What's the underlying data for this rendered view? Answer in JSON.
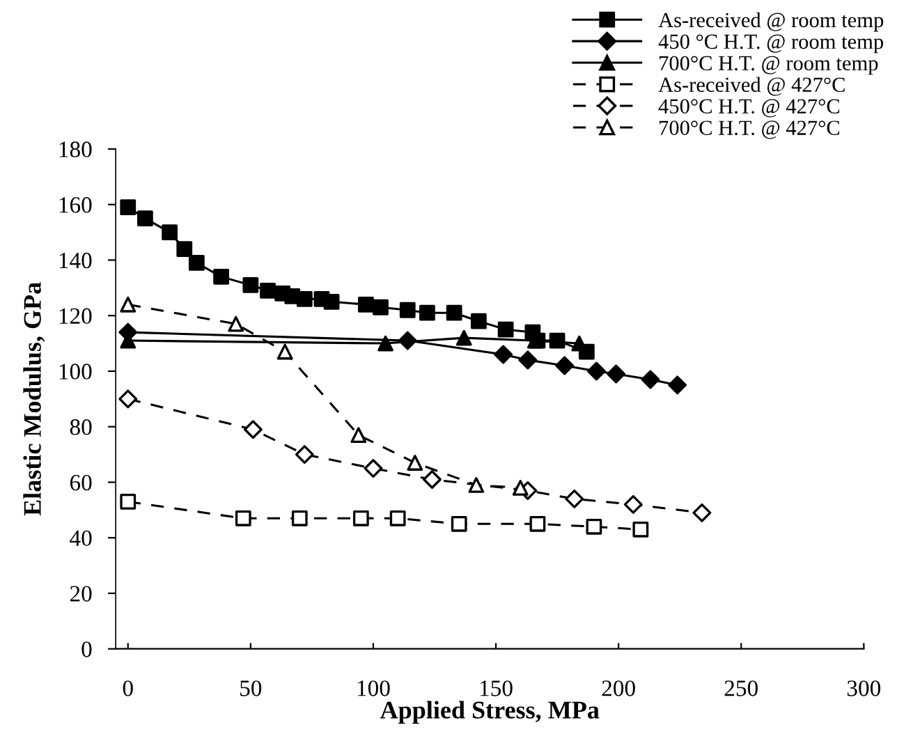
{
  "chart_data": {
    "type": "line",
    "xlabel": "Applied Stress, MPa",
    "ylabel": "Elastic Modulus, GPa",
    "xlim": [
      -5,
      300
    ],
    "ylim": [
      0,
      180
    ],
    "xticks": [
      0,
      50,
      100,
      150,
      200,
      250,
      300
    ],
    "yticks": [
      0,
      20,
      40,
      60,
      80,
      100,
      120,
      140,
      160,
      180
    ],
    "grid": false,
    "legend": "top right",
    "series": [
      {
        "name": "As-received @ room temp",
        "color": "#000000",
        "marker": "square",
        "line_style": "solid",
        "x": [
          0,
          7,
          17,
          23,
          28,
          38,
          50,
          57,
          63,
          67,
          72,
          79,
          83,
          97,
          103,
          114,
          122,
          133,
          143,
          154,
          165,
          167,
          175,
          187
        ],
        "values": [
          159,
          155,
          150,
          144,
          139,
          134,
          131,
          129,
          128,
          127,
          126,
          126,
          125,
          124,
          123,
          122,
          121,
          121,
          118,
          115,
          114,
          111,
          111,
          107
        ]
      },
      {
        "name": "450 °C H.T. @ room temp",
        "color": "#000000",
        "marker": "diamond",
        "line_style": "solid",
        "x": [
          0,
          114,
          153,
          163,
          178,
          191,
          199,
          213,
          224
        ],
        "values": [
          114,
          111,
          106,
          104,
          102,
          100,
          99,
          97,
          95
        ]
      },
      {
        "name": "700°C H.T. @ room temp",
        "color": "#000000",
        "marker": "triangle",
        "line_style": "solid",
        "x": [
          0,
          105,
          137,
          166,
          184
        ],
        "values": [
          111,
          110,
          112,
          111,
          110
        ]
      },
      {
        "name": "As-received @ 427°C",
        "color": "#000000",
        "marker": "square",
        "line_style": "dashed",
        "x": [
          0,
          47,
          70,
          95,
          110,
          135,
          167,
          190,
          209
        ],
        "values": [
          53,
          47,
          47,
          47,
          47,
          45,
          45,
          44,
          43
        ]
      },
      {
        "name": "450°C H.T. @ 427°C",
        "color": "#000000",
        "marker": "diamond",
        "line_style": "dashed",
        "x": [
          0,
          51,
          72,
          100,
          124,
          163,
          182,
          206,
          234
        ],
        "values": [
          90,
          79,
          70,
          65,
          61,
          57,
          54,
          52,
          49
        ]
      },
      {
        "name": "700°C H.T. @ 427°C",
        "color": "#000000",
        "marker": "triangle",
        "line_style": "dashed",
        "x": [
          0,
          44,
          64,
          94,
          117,
          142,
          160
        ],
        "values": [
          124,
          117,
          107,
          77,
          67,
          59,
          58
        ]
      }
    ]
  }
}
